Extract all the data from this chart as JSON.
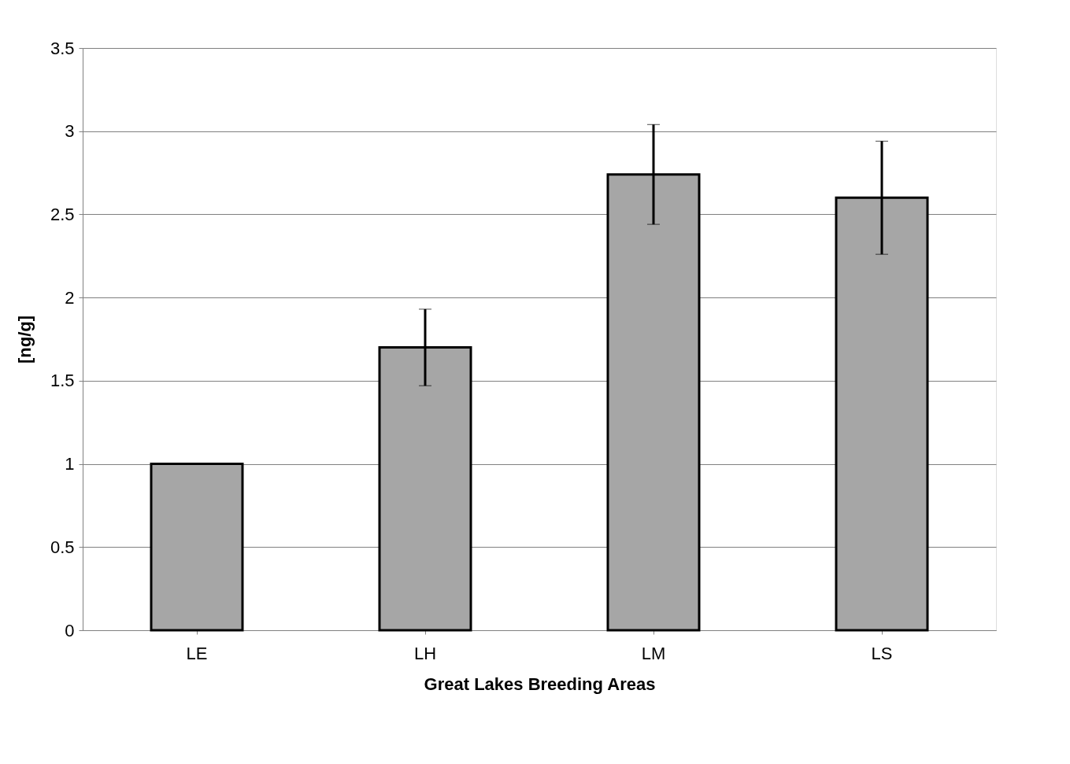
{
  "chart_data": {
    "type": "bar",
    "xlabel": "Great Lakes Breeding Areas",
    "ylabel": "[ng/g]",
    "categories": [
      "LE",
      "LH",
      "LM",
      "LS"
    ],
    "values": [
      1.0,
      1.7,
      2.74,
      2.6
    ],
    "errors": [
      null,
      0.23,
      0.3,
      0.34
    ],
    "color": "#a6a6a6",
    "ylim": [
      0,
      3.5
    ],
    "yticks": [
      0,
      0.5,
      1,
      1.5,
      2,
      2.5,
      3,
      3.5
    ],
    "grid": "y"
  }
}
